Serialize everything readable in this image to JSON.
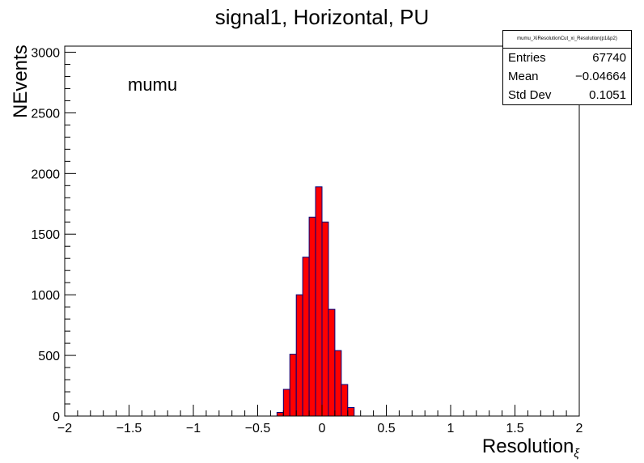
{
  "chart_data": {
    "type": "bar",
    "title": "signal1, Horizontal, PU",
    "annotation": "mumu",
    "xlabel": "Resolution",
    "xlabel_subscript": "ξ",
    "ylabel": "NEvents",
    "xlim": [
      -2,
      2
    ],
    "ylim": [
      0,
      3050
    ],
    "x_ticks": [
      "−2",
      "−1.5",
      "−1",
      "−0.5",
      "0",
      "0.5",
      "1",
      "1.5",
      "2"
    ],
    "y_ticks": [
      "0",
      "500",
      "1000",
      "1500",
      "2000",
      "2500",
      "3000"
    ],
    "fill_color": "#ff0000",
    "line_color": "#00007a",
    "bin_width": 0.05,
    "bins": [
      {
        "low": -0.35,
        "value": 30
      },
      {
        "low": -0.3,
        "value": 220
      },
      {
        "low": -0.25,
        "value": 510
      },
      {
        "low": -0.2,
        "value": 1000
      },
      {
        "low": -0.15,
        "value": 1310
      },
      {
        "low": -0.1,
        "value": 1640
      },
      {
        "low": -0.05,
        "value": 1890
      },
      {
        "low": 0.0,
        "value": 1600
      },
      {
        "low": 0.05,
        "value": 880
      },
      {
        "low": 0.1,
        "value": 540
      },
      {
        "low": 0.15,
        "value": 260
      },
      {
        "low": 0.2,
        "value": 70
      }
    ],
    "stats_box": {
      "header": "mumu_XiResolutionCut_xi_Resolution(p1&p2)",
      "rows": [
        {
          "key": "Entries",
          "value": "67740"
        },
        {
          "key": "Mean",
          "value": "−0.04664"
        },
        {
          "key": "Std Dev",
          "value": "0.1051"
        }
      ]
    }
  }
}
